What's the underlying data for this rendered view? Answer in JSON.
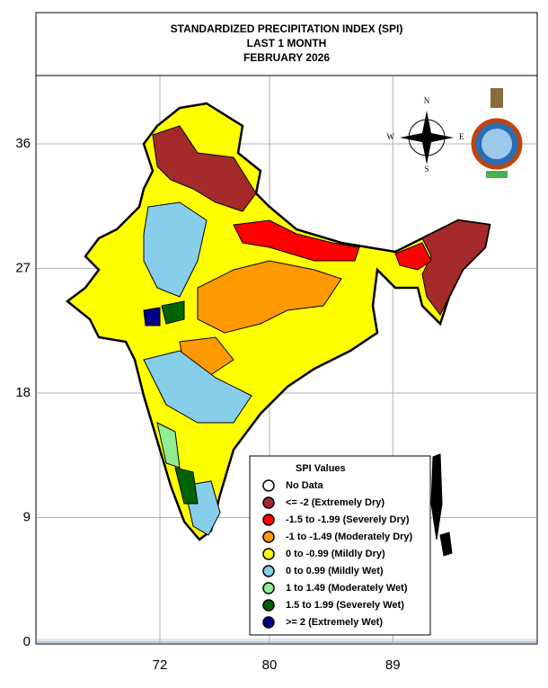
{
  "header": {
    "title_lines": [
      "STANDARDIZED PRECIPITATION INDEX (SPI)",
      "LAST 1 MONTH",
      "FEBRUARY 2026"
    ]
  },
  "map": {
    "yticks": [
      36,
      27,
      18,
      9,
      0
    ],
    "xticks": [
      72,
      80,
      89
    ]
  },
  "compass": {
    "n": "N",
    "e": "E",
    "s": "S",
    "w": "W"
  },
  "legend": {
    "title": "SPI Values",
    "items": [
      {
        "label": "No Data",
        "color": "#ffffff"
      },
      {
        "label": "<= -2 (Extremely Dry)",
        "color": "#a52a2a"
      },
      {
        "label": "-1.5 to -1.99 (Severely Dry)",
        "color": "#ff0000"
      },
      {
        "label": "-1 to -1.49 (Moderately Dry)",
        "color": "#ff9900"
      },
      {
        "label": "0 to -0.99 (Mildly  Dry)",
        "color": "#ffff00"
      },
      {
        "label": "0 to 0.99 (Mildly  Wet)",
        "color": "#87ceeb"
      },
      {
        "label": "1 to 1.49 (Moderately Wet)",
        "color": "#90ee90"
      },
      {
        "label": "1.5 to 1.99 (Severely Wet)",
        "color": "#006400"
      },
      {
        "label": ">= 2 (Extremely Wet)",
        "color": "#00008b"
      }
    ]
  }
}
